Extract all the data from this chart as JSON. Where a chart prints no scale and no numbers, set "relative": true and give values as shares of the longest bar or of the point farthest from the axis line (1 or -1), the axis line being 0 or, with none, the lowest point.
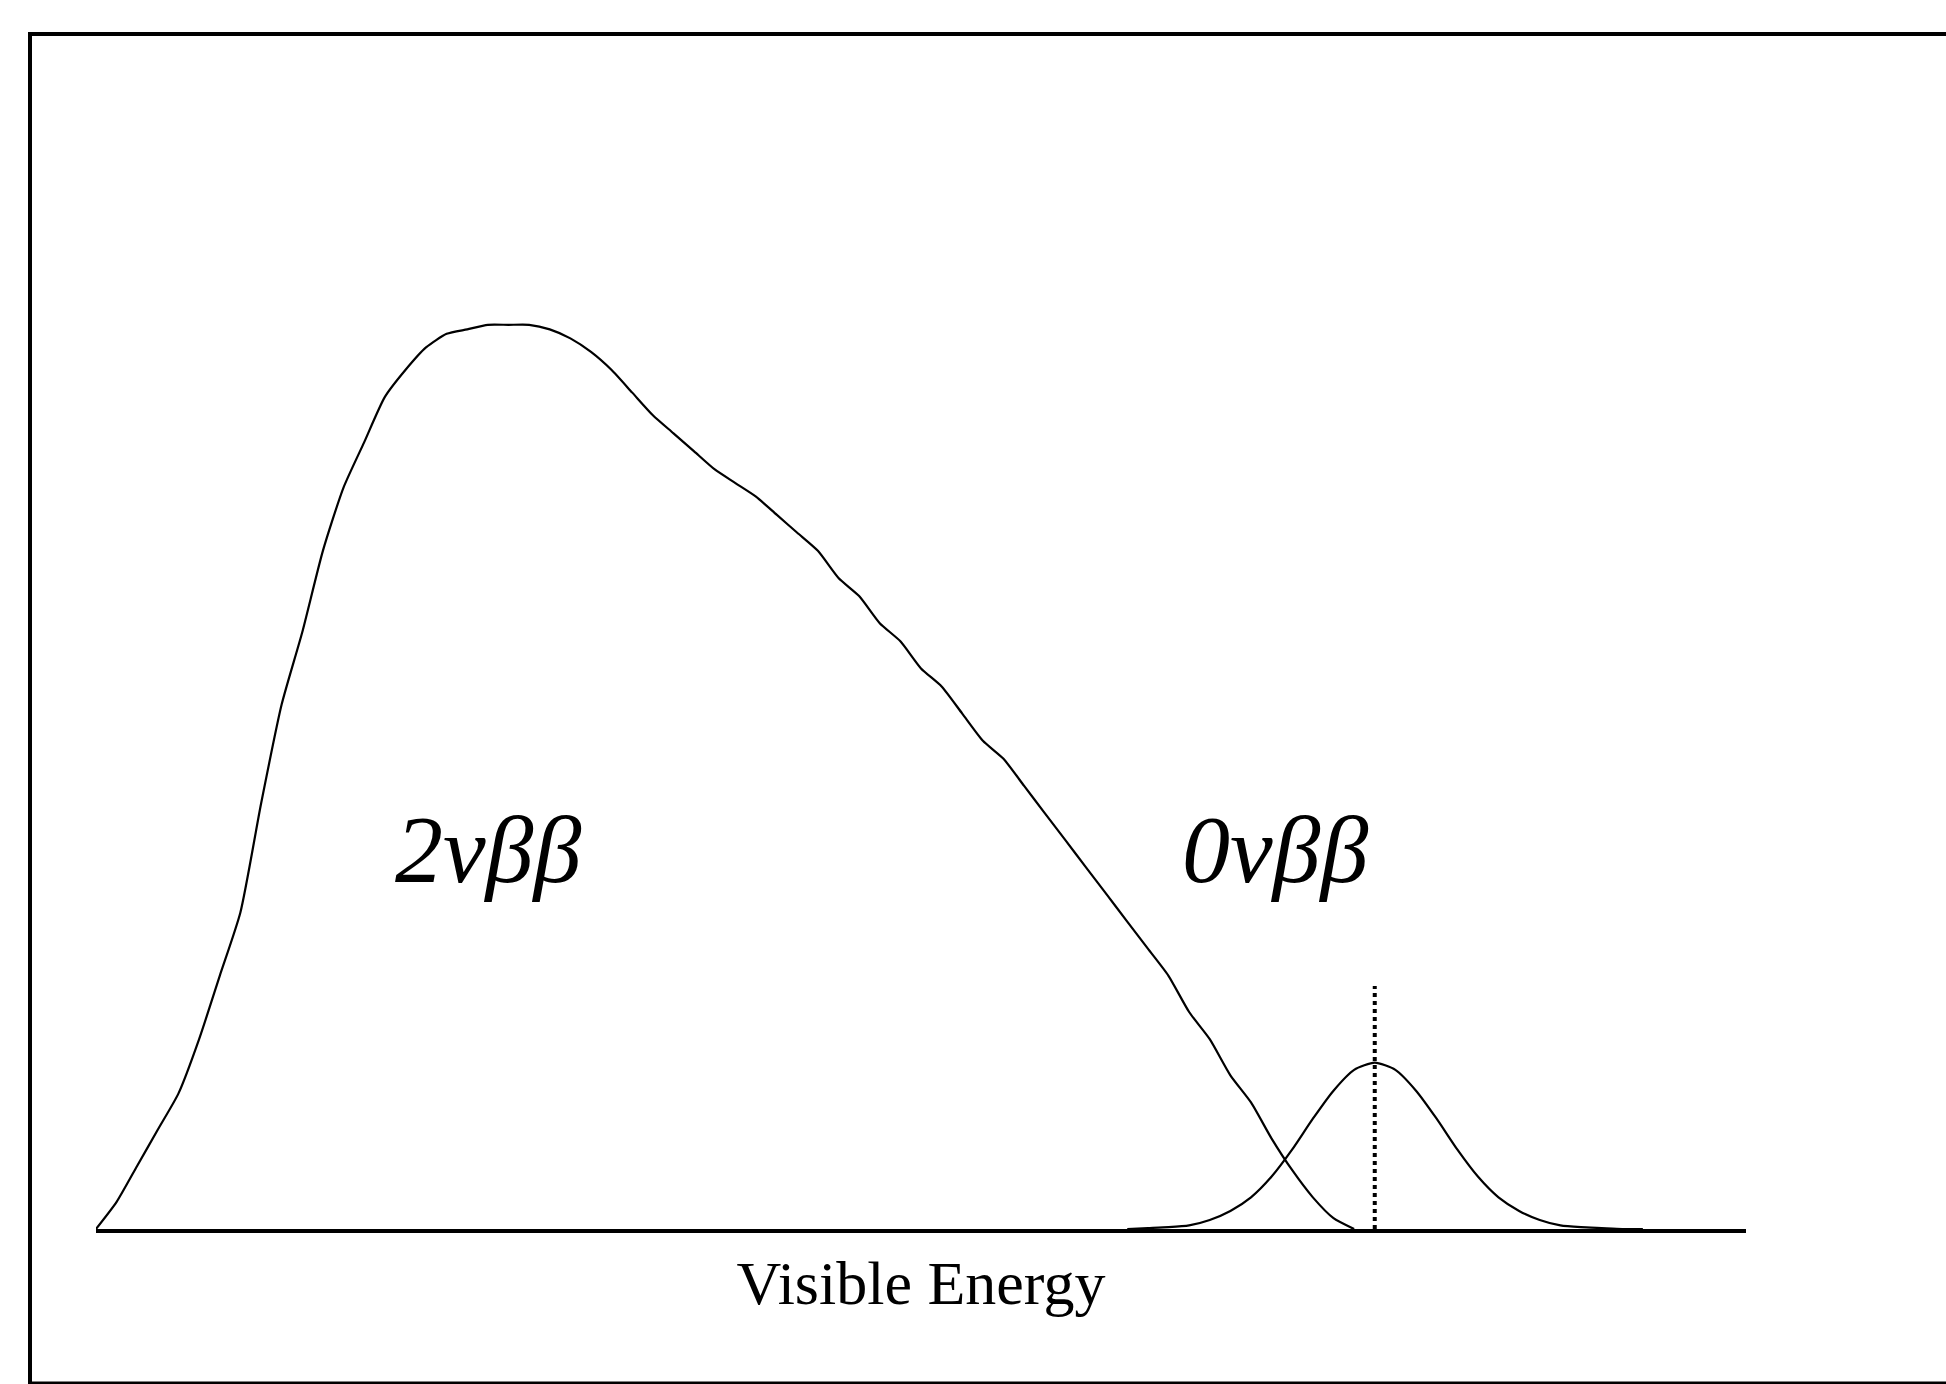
{
  "chart_data": {
    "type": "line",
    "relative": true,
    "xlabel": "Visible Energy",
    "categories": [
      null,
      null,
      null,
      null,
      null,
      null,
      null,
      null,
      null,
      null,
      null,
      null,
      null,
      null,
      null,
      null,
      null,
      null,
      null,
      null,
      null,
      null,
      null,
      null,
      null,
      null,
      null,
      null,
      null,
      null,
      null,
      null,
      null,
      null,
      null,
      null,
      null,
      null,
      null,
      null,
      null,
      null,
      null,
      null,
      null,
      null,
      null,
      null,
      null,
      null,
      null,
      null,
      null,
      null,
      null,
      null,
      null,
      null,
      null,
      null,
      null,
      null,
      null,
      null,
      null,
      null,
      null,
      null,
      null,
      null,
      null,
      null,
      null,
      null,
      null,
      null,
      null,
      null,
      null,
      null,
      null
    ],
    "series": [
      {
        "name": "2νββ",
        "color": "#000000",
        "values": [
          0,
          0.03,
          0.07,
          0.11,
          0.15,
          0.21,
          0.28,
          0.35,
          0.47,
          0.58,
          0.66,
          0.75,
          0.82,
          0.87,
          0.92,
          0.95,
          0.975,
          0.99,
          0.995,
          1.0,
          1.0,
          1.0,
          0.995,
          0.985,
          0.97,
          0.95,
          0.925,
          0.9,
          0.88,
          0.86,
          0.84,
          0.825,
          0.81,
          0.79,
          0.77,
          0.75,
          0.72,
          0.7,
          0.67,
          0.65,
          0.62,
          0.6,
          0.57,
          0.54,
          0.52,
          0.49,
          0.46,
          0.43,
          0.4,
          0.37,
          0.34,
          0.31,
          0.28,
          0.24,
          0.21,
          0.17,
          0.14,
          0.1,
          0.065,
          0.035,
          0.012,
          0,
          null,
          null,
          null,
          null,
          null,
          null,
          null,
          null,
          null,
          null,
          null,
          null,
          null,
          null,
          null,
          null,
          null,
          null,
          null
        ]
      },
      {
        "name": "0νββ",
        "color": "#000000",
        "values": [
          null,
          null,
          null,
          null,
          null,
          null,
          null,
          null,
          null,
          null,
          null,
          null,
          null,
          null,
          null,
          null,
          null,
          null,
          null,
          null,
          null,
          null,
          null,
          null,
          null,
          null,
          null,
          null,
          null,
          null,
          null,
          null,
          null,
          null,
          null,
          null,
          null,
          null,
          null,
          null,
          null,
          null,
          null,
          null,
          null,
          null,
          null,
          null,
          null,
          null,
          0,
          0.001,
          0.002,
          0.004,
          0.01,
          0.02,
          0.035,
          0.058,
          0.088,
          0.122,
          0.153,
          0.176,
          0.184,
          0.176,
          0.153,
          0.122,
          0.088,
          0.058,
          0.035,
          0.02,
          0.01,
          0.004,
          0.002,
          0.001,
          0,
          0,
          null,
          null,
          null,
          null,
          null
        ]
      }
    ],
    "line_style": "solid",
    "marker": "none",
    "legend": false,
    "tick_labels": false
  }
}
